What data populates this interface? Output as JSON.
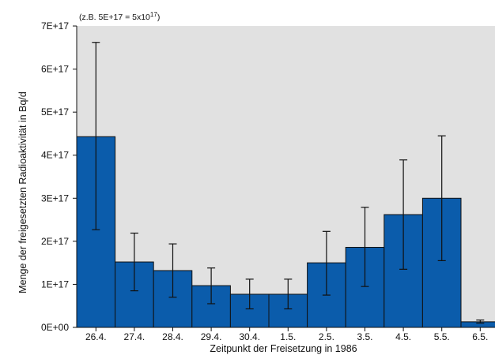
{
  "chart_data": {
    "type": "bar",
    "title": "",
    "note": "(z.B. 5E+17 = 5x10",
    "note_exponent": "17",
    "note_close": ")",
    "xlabel": "Zeitpunkt der Freisetzung in 1986",
    "ylabel": "Menge der freigesetzten Radioaktivität in Bq/d",
    "ylim": [
      0,
      7e+17
    ],
    "yticks": [
      0,
      1e+17,
      2e+17,
      3e+17,
      4e+17,
      5e+17,
      6e+17,
      7e+17
    ],
    "ytick_labels": [
      "0E+00",
      "1E+17",
      "2E+17",
      "3E+17",
      "4E+17",
      "5E+17",
      "6E+17",
      "7E+17"
    ],
    "categories": [
      "26.4.",
      "27.4.",
      "28.4.",
      "29.4.",
      "30.4.",
      "1.5.",
      "2.5.",
      "3.5.",
      "4.5.",
      "5.5.",
      "6.5."
    ],
    "values": [
      4.43e+17,
      1.52e+17,
      1.32e+17,
      9.7e+16,
      7.7e+16,
      7.7e+16,
      1.5e+17,
      1.86e+17,
      2.62e+17,
      3e+17,
      1.3e+16
    ],
    "error_low": [
      2.27e+17,
      8.5e+16,
      7e+16,
      5.5e+16,
      4.3e+16,
      4.3e+16,
      7.5e+16,
      9.5e+16,
      1.35e+17,
      1.55e+17,
      1e+16
    ],
    "error_high": [
      6.62e+17,
      2.19e+17,
      1.94e+17,
      1.38e+17,
      1.12e+17,
      1.12e+17,
      2.23e+17,
      2.79e+17,
      3.89e+17,
      4.45e+17,
      1.7e+16
    ],
    "grid": false,
    "colors": {
      "bar": "#0b5cab",
      "bar_edge": "#111111",
      "plot_background": "#e1e1e1",
      "error_bar": "#111111"
    }
  }
}
